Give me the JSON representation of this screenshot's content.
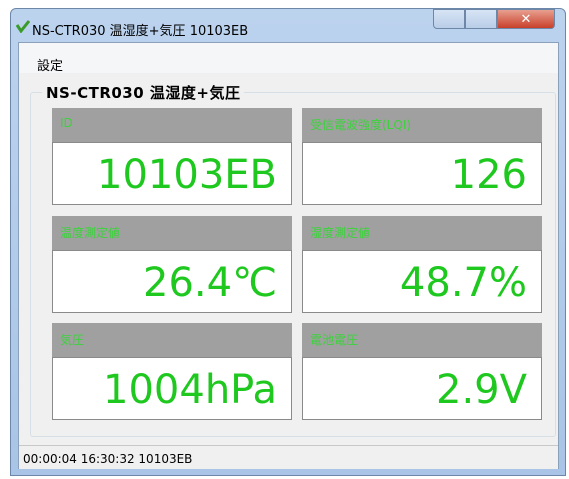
{
  "window": {
    "title": "NS-CTR030 温湿度+気圧 10103EB"
  },
  "menu": [
    "設定"
  ],
  "group": {
    "title": "NS-CTR030 温湿度+気圧",
    "panels": [
      {
        "label": "ID",
        "value": "10103EB"
      },
      {
        "label": "受信電波強度(LQI)",
        "value": "126"
      },
      {
        "label": "温度測定値",
        "value": "26.4℃"
      },
      {
        "label": "湿度測定値",
        "value": "48.7%"
      },
      {
        "label": "気圧",
        "value": "1004hPa"
      },
      {
        "label": "電池電圧",
        "value": "2.9V"
      }
    ]
  },
  "status": "00:00:04 16:30:32 10103EB"
}
